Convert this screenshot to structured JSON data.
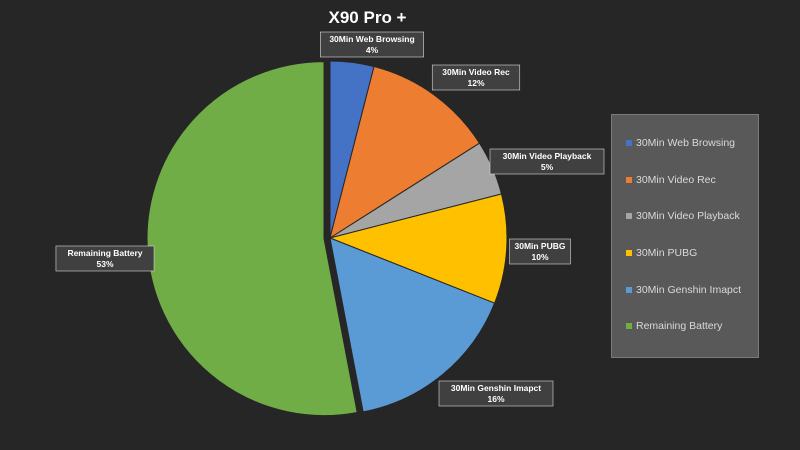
{
  "chart_data": {
    "type": "pie",
    "title": "X90 Pro +",
    "categories": [
      "30Min Web Browsing",
      "30Min Video Rec",
      "30Min Video Playback",
      "30Min PUBG",
      "30Min Genshin Imapct",
      "Remaining Battery"
    ],
    "values": [
      4,
      12,
      5,
      10,
      16,
      53
    ],
    "labels": [
      "4%",
      "12%",
      "5%",
      "10%",
      "16%",
      "53%"
    ],
    "colors": [
      "#4472c4",
      "#ed7d31",
      "#a5a5a5",
      "#ffc000",
      "#5b9bd5",
      "#70ad47"
    ],
    "legend": "right",
    "exploded_slices": [
      "Remaining Battery"
    ]
  }
}
